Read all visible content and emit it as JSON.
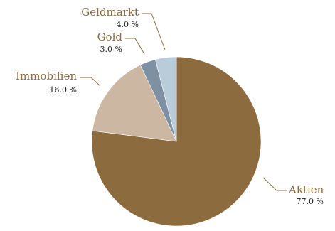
{
  "chart_data": {
    "type": "pie",
    "title": "",
    "series": [
      {
        "values": [
          77.0,
          16.0,
          3.0,
          4.0
        ]
      }
    ],
    "categories": [
      "Aktien",
      "Immobilien",
      "Gold",
      "Geldmarkt"
    ],
    "values": [
      77.0,
      16.0,
      3.0,
      4.0
    ],
    "value_labels": [
      "77.0 %",
      "16.0 %",
      "3.0 %",
      "4.0 %"
    ],
    "start_angle_deg_from_top_clockwise": 0,
    "direction": "clockwise",
    "legend": "none",
    "label_color": "#8B6A3E",
    "colors": [
      "#8C6B3F",
      "#CBB7A2",
      "#7E91A2",
      "#B9CCDA"
    ],
    "leader_line_color": "#8B6A3E"
  }
}
